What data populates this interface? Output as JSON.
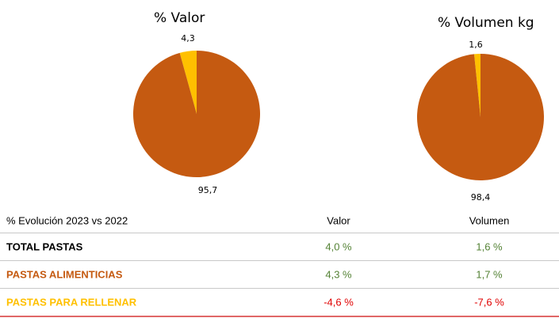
{
  "colors": {
    "pastas_alimenticias": "#C55A11",
    "pastas_para_rellenar": "#FFC000",
    "positive": "#548235",
    "negative": "#E00000"
  },
  "chart_data": [
    {
      "type": "pie",
      "title": "% Valor",
      "slices": [
        {
          "label": "4,3",
          "value": 4.3,
          "color": "#FFC000"
        },
        {
          "label": "95,7",
          "value": 95.7,
          "color": "#C55A11"
        }
      ]
    },
    {
      "type": "pie",
      "title": "% Volumen kg",
      "slices": [
        {
          "label": "1,6",
          "value": 1.6,
          "color": "#FFC000"
        },
        {
          "label": "98,4",
          "value": 98.4,
          "color": "#C55A11"
        }
      ]
    }
  ],
  "table": {
    "header": {
      "label": "% Evolución 2023 vs 2022",
      "valor": "Valor",
      "volumen": "Volumen"
    },
    "rows": [
      {
        "label": "TOTAL PASTAS",
        "valor": "4,0 %",
        "volumen": "1,6 %"
      },
      {
        "label": "PASTAS ALIMENTICIAS",
        "valor": "4,3 %",
        "volumen": "1,7 %"
      },
      {
        "label": "PASTAS PARA RELLENAR",
        "valor": "-4,6 %",
        "volumen": "-7,6 %"
      }
    ]
  }
}
